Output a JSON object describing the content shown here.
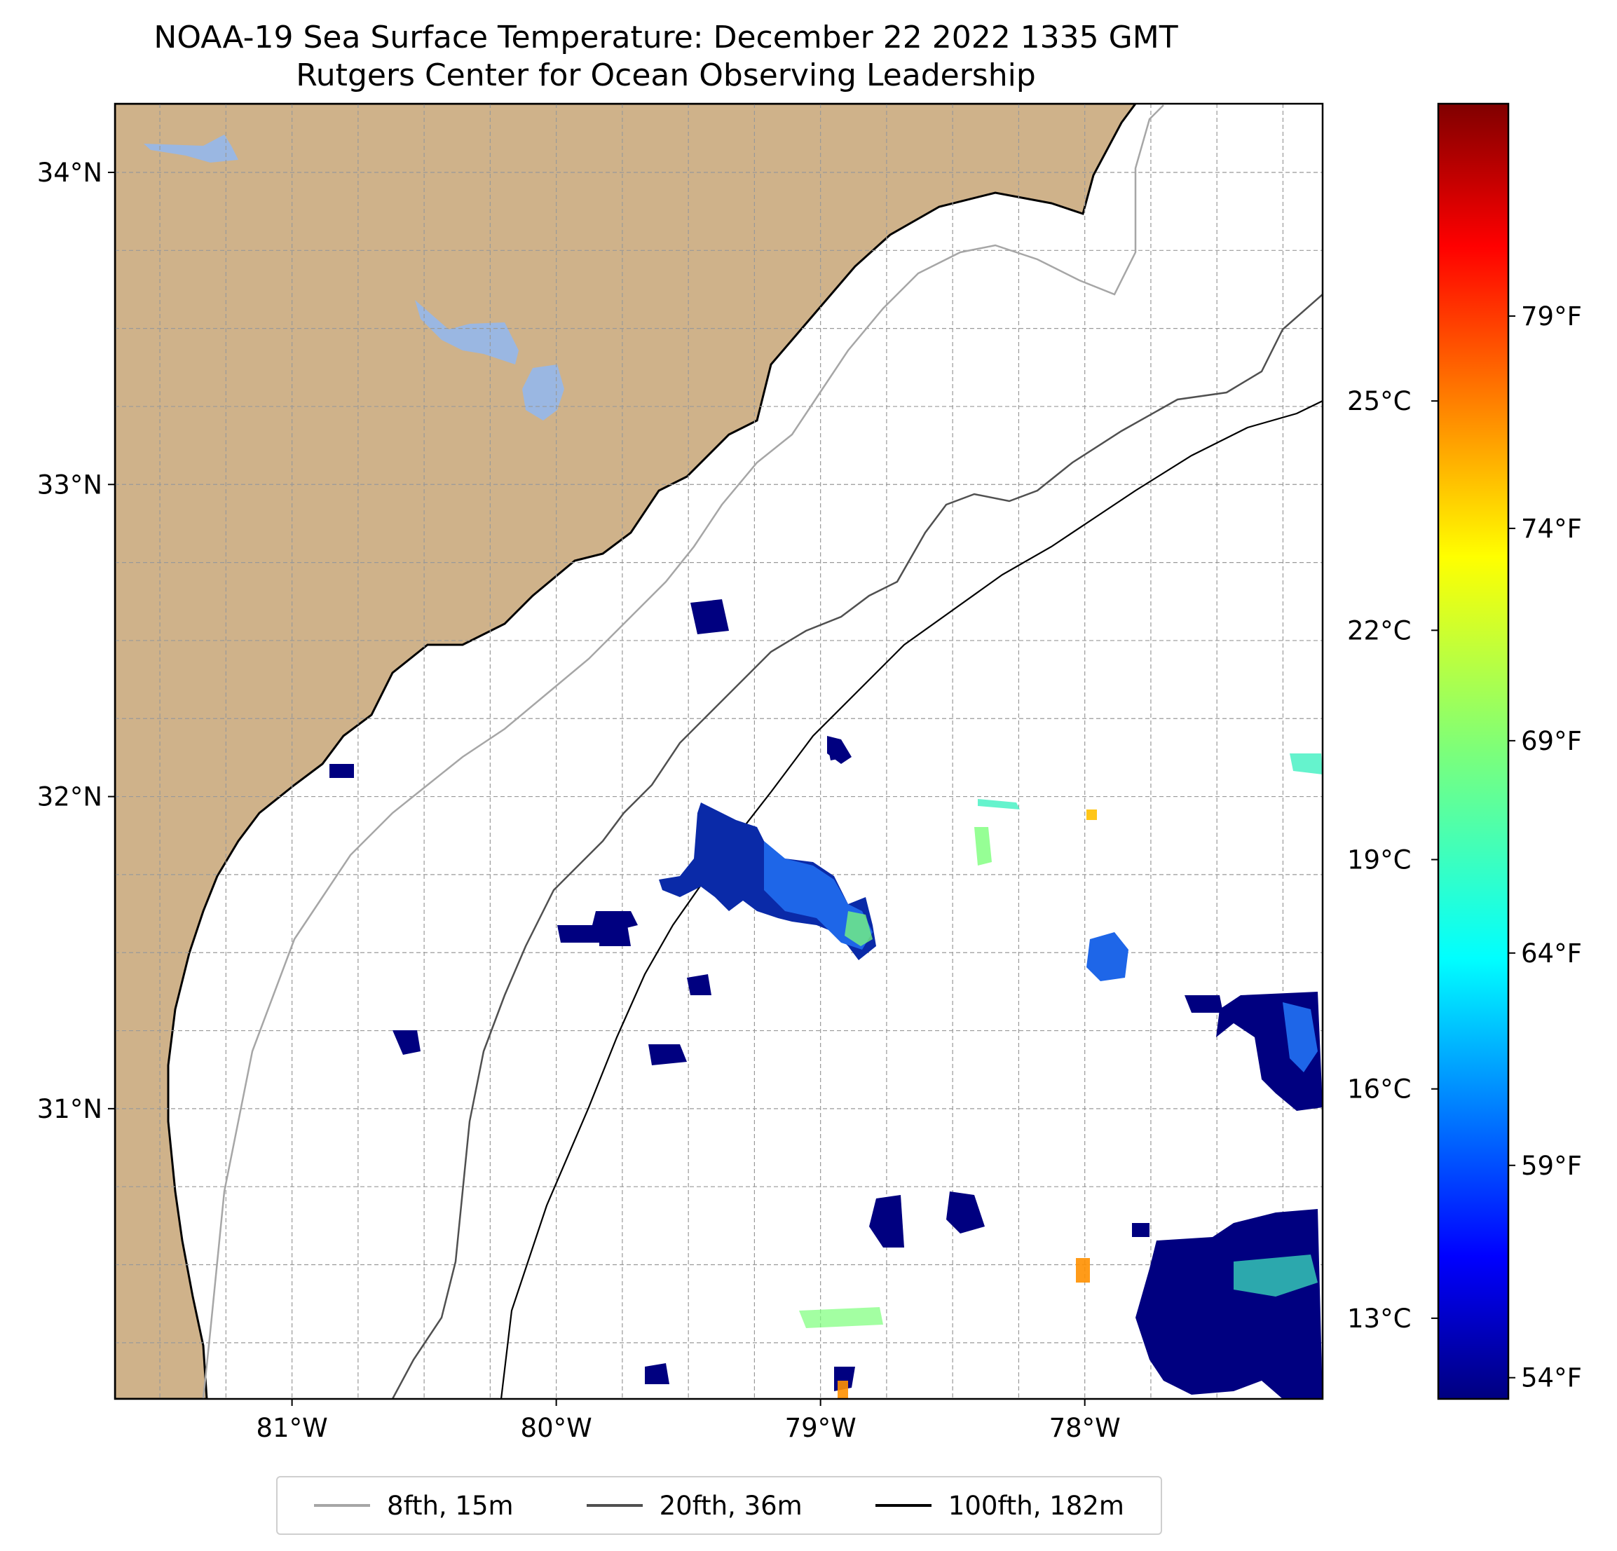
{
  "title": "NOAA-19 Sea Surface Temperature: December 22 2022 1335 GMT",
  "subtitle": "Rutgers Center for Ocean Observing Leadership",
  "map": {
    "lon_range": [
      -81.67,
      -77.1
    ],
    "lat_range": [
      30.07,
      34.22
    ],
    "land_color": "#cfb28a",
    "lake_color": "#9ab7e2",
    "grid": "dashed",
    "lat_ticks": [
      {
        "value": 34,
        "label": "34°N"
      },
      {
        "value": 33,
        "label": "33°N"
      },
      {
        "value": 32,
        "label": "32°N"
      },
      {
        "value": 31,
        "label": "31°N"
      }
    ],
    "lon_ticks": [
      {
        "value": -81,
        "label": "81°W"
      },
      {
        "value": -80,
        "label": "80°W"
      },
      {
        "value": -79,
        "label": "79°W"
      },
      {
        "value": -78,
        "label": "78°W"
      }
    ]
  },
  "colorbar": {
    "colormap": "jet",
    "range_f": [
      53.5,
      84
    ],
    "celsius_ticks": [
      {
        "value": 25,
        "label": "25°C"
      },
      {
        "value": 22,
        "label": "22°C"
      },
      {
        "value": 19,
        "label": "19°C"
      },
      {
        "value": 16,
        "label": "16°C"
      },
      {
        "value": 13,
        "label": "13°C"
      }
    ],
    "fahrenheit_ticks": [
      {
        "value": 79,
        "label": "79°F"
      },
      {
        "value": 74,
        "label": "74°F"
      },
      {
        "value": 69,
        "label": "69°F"
      },
      {
        "value": 64,
        "label": "64°F"
      },
      {
        "value": 59,
        "label": "59°F"
      },
      {
        "value": 54,
        "label": "54°F"
      }
    ]
  },
  "legend": {
    "placement": "bottom-center",
    "items": [
      {
        "label": "8fth, 15m",
        "color": "#a6a6a6"
      },
      {
        "label": "20fth, 36m",
        "color": "#505050"
      },
      {
        "label": "100fth, 182m",
        "color": "#000000"
      }
    ]
  }
}
